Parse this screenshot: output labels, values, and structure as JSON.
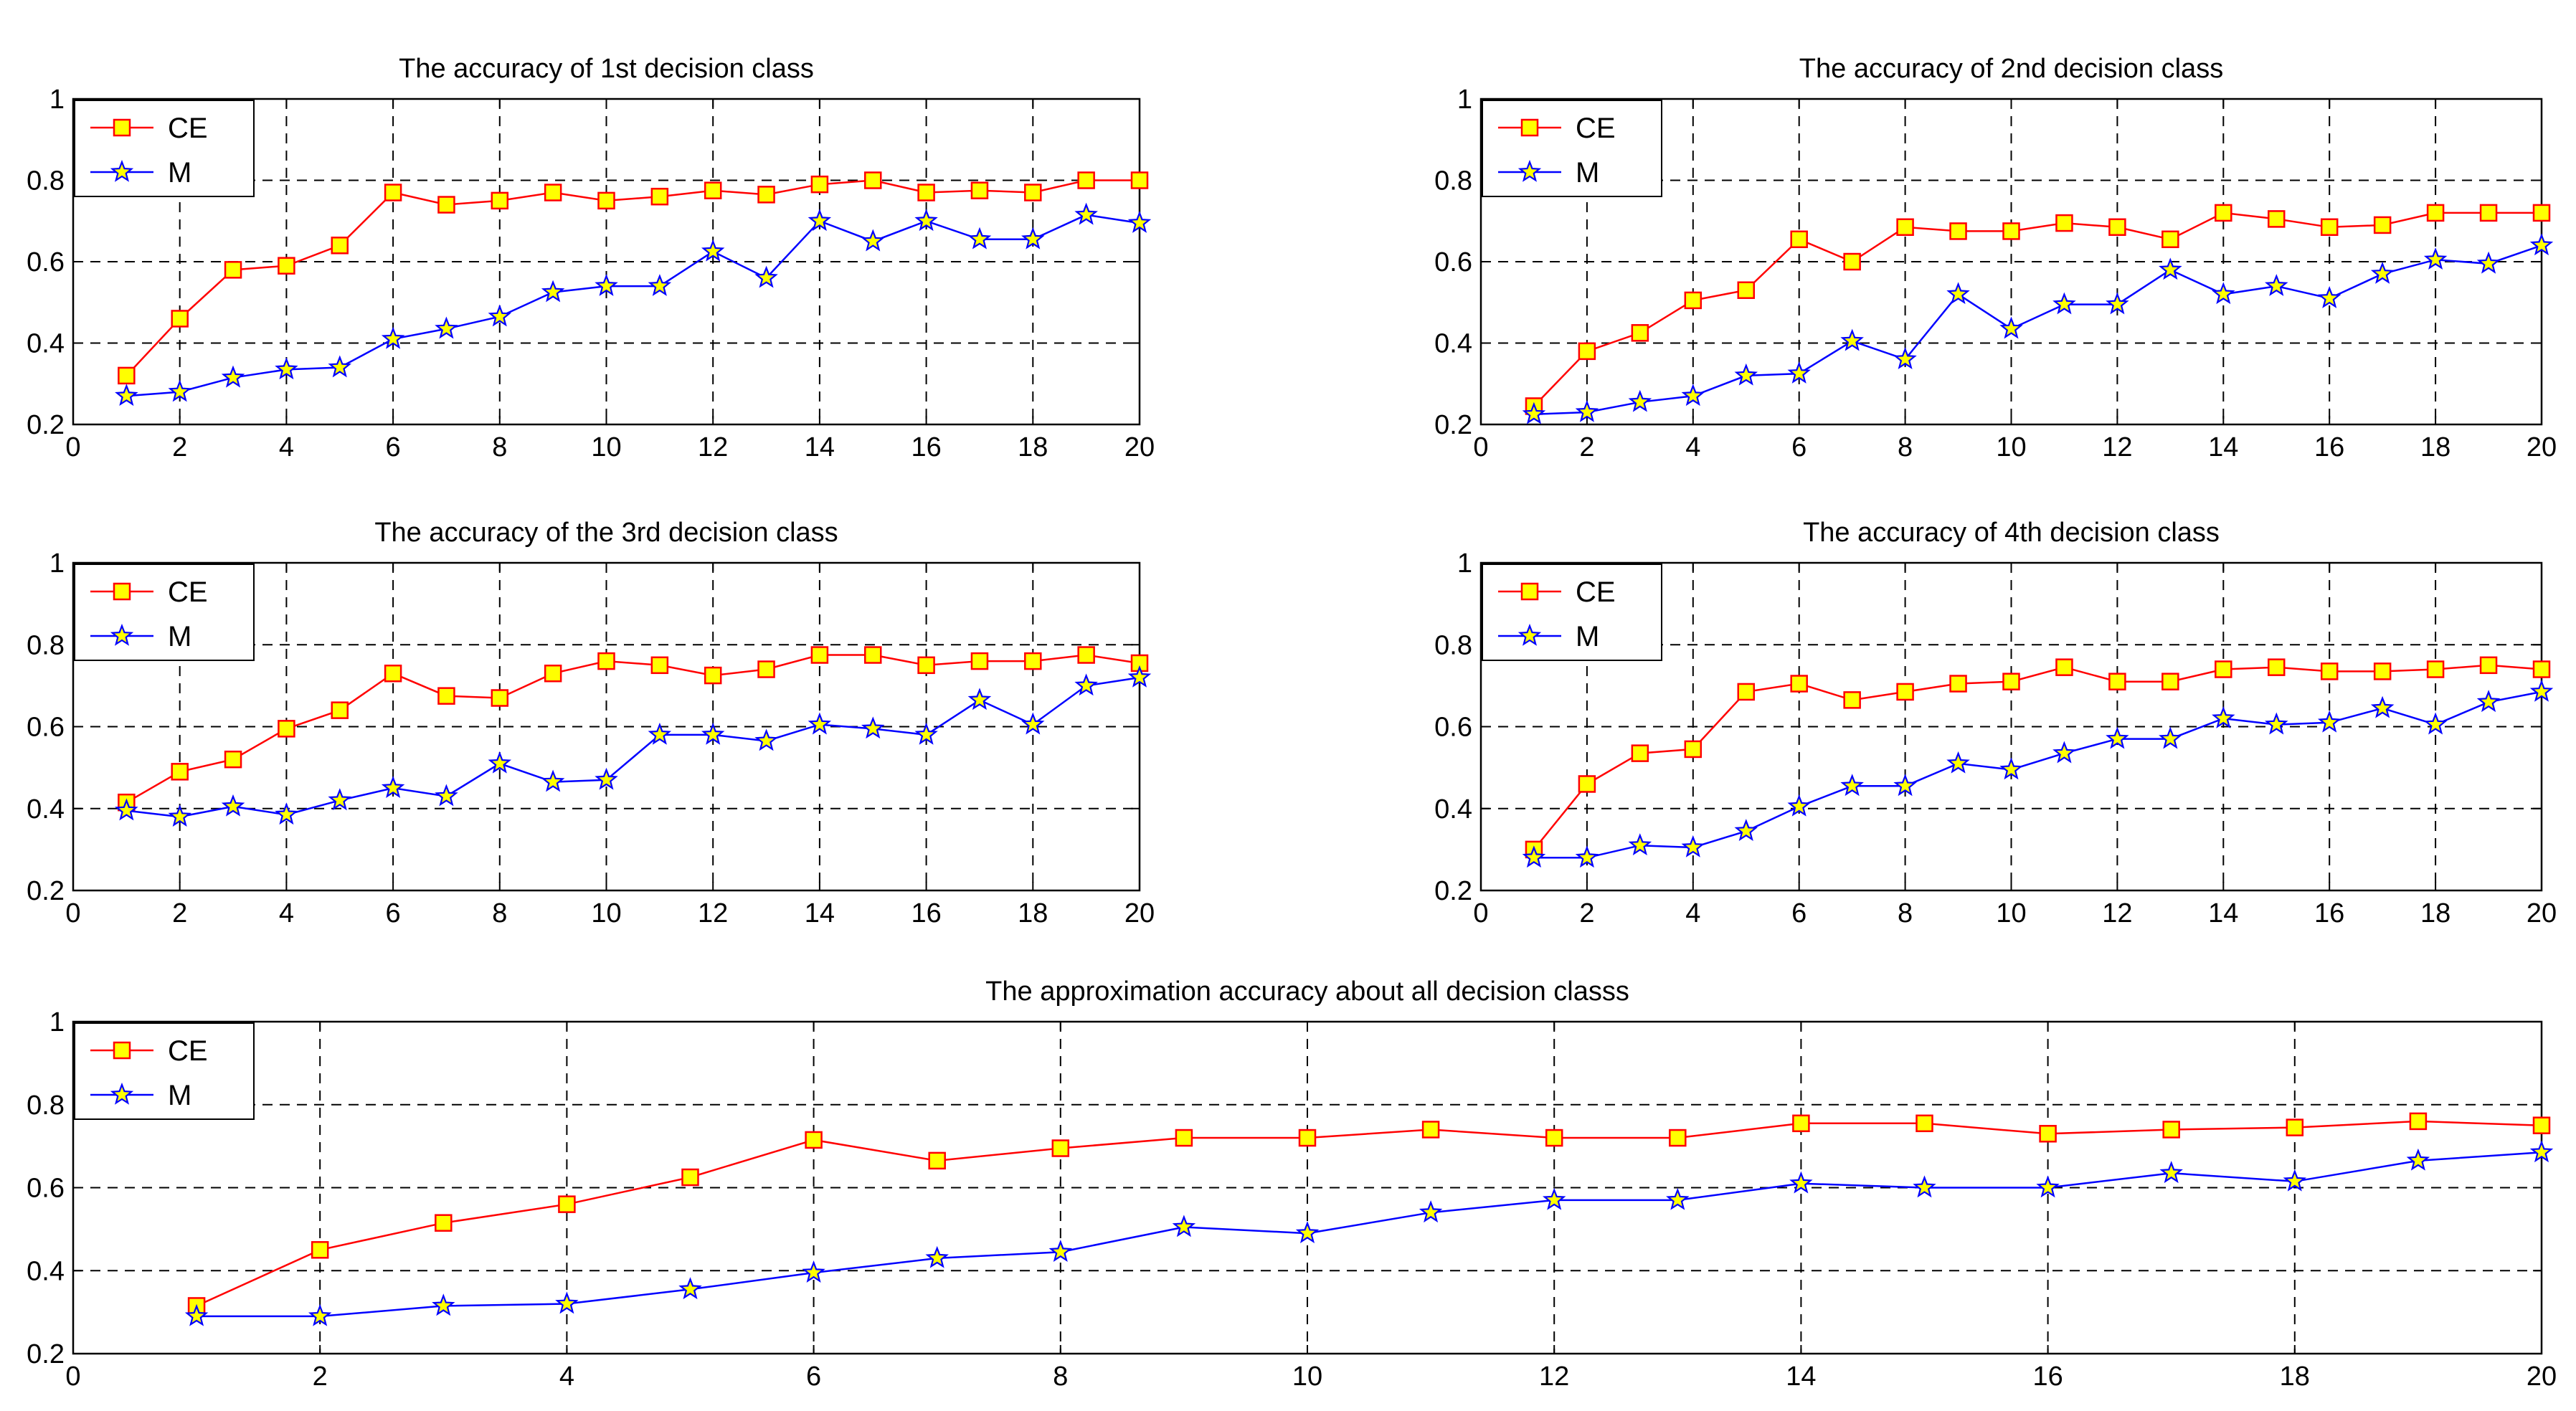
{
  "chart_data": [
    {
      "type": "line",
      "title": "The accuracy of 1st decision class",
      "xlim": [
        0,
        20
      ],
      "ylim": [
        0.2,
        1
      ],
      "xticks": [
        0,
        2,
        4,
        6,
        8,
        10,
        12,
        14,
        16,
        18,
        20
      ],
      "yticks": [
        0.2,
        0.4,
        0.6,
        0.8,
        1
      ],
      "grid": true,
      "legend_position": "top-left",
      "x": [
        1,
        2,
        3,
        4,
        5,
        6,
        7,
        8,
        9,
        10,
        11,
        12,
        13,
        14,
        15,
        16,
        17,
        18,
        19,
        20
      ],
      "series": [
        {
          "name": "CE",
          "color": "#ff0000",
          "marker": "square",
          "marker_fill": "#ffff00",
          "values": [
            0.32,
            0.46,
            0.58,
            0.59,
            0.64,
            0.77,
            0.74,
            0.75,
            0.77,
            0.75,
            0.76,
            0.775,
            0.765,
            0.79,
            0.8,
            0.77,
            0.775,
            0.77,
            0.8,
            0.8
          ]
        },
        {
          "name": "M",
          "color": "#0000ff",
          "marker": "star",
          "marker_fill": "#ffff00",
          "values": [
            0.27,
            0.28,
            0.315,
            0.335,
            0.34,
            0.41,
            0.435,
            0.465,
            0.525,
            0.54,
            0.54,
            0.625,
            0.56,
            0.7,
            0.65,
            0.7,
            0.655,
            0.655,
            0.715,
            0.695
          ]
        }
      ]
    },
    {
      "type": "line",
      "title": "The accuracy of 2nd decision class",
      "xlim": [
        0,
        20
      ],
      "ylim": [
        0.2,
        1
      ],
      "xticks": [
        0,
        2,
        4,
        6,
        8,
        10,
        12,
        14,
        16,
        18,
        20
      ],
      "yticks": [
        0.2,
        0.4,
        0.6,
        0.8,
        1
      ],
      "grid": true,
      "legend_position": "top-left",
      "x": [
        1,
        2,
        3,
        4,
        5,
        6,
        7,
        8,
        9,
        10,
        11,
        12,
        13,
        14,
        15,
        16,
        17,
        18,
        19,
        20
      ],
      "series": [
        {
          "name": "CE",
          "color": "#ff0000",
          "marker": "square",
          "marker_fill": "#ffff00",
          "values": [
            0.245,
            0.38,
            0.425,
            0.505,
            0.53,
            0.655,
            0.6,
            0.685,
            0.675,
            0.675,
            0.695,
            0.685,
            0.655,
            0.72,
            0.705,
            0.685,
            0.69,
            0.72,
            0.72,
            0.72
          ]
        },
        {
          "name": "M",
          "color": "#0000ff",
          "marker": "star",
          "marker_fill": "#ffff00",
          "values": [
            0.225,
            0.23,
            0.255,
            0.27,
            0.32,
            0.325,
            0.405,
            0.36,
            0.52,
            0.435,
            0.495,
            0.495,
            0.58,
            0.52,
            0.54,
            0.51,
            0.57,
            0.605,
            0.595,
            0.64
          ]
        }
      ]
    },
    {
      "type": "line",
      "title": "The accuracy of the 3rd decision class",
      "xlim": [
        0,
        20
      ],
      "ylim": [
        0.2,
        1
      ],
      "xticks": [
        0,
        2,
        4,
        6,
        8,
        10,
        12,
        14,
        16,
        18,
        20
      ],
      "yticks": [
        0.2,
        0.4,
        0.6,
        0.8,
        1
      ],
      "grid": true,
      "legend_position": "top-left",
      "x": [
        1,
        2,
        3,
        4,
        5,
        6,
        7,
        8,
        9,
        10,
        11,
        12,
        13,
        14,
        15,
        16,
        17,
        18,
        19,
        20
      ],
      "series": [
        {
          "name": "CE",
          "color": "#ff0000",
          "marker": "square",
          "marker_fill": "#ffff00",
          "values": [
            0.415,
            0.49,
            0.52,
            0.595,
            0.64,
            0.73,
            0.675,
            0.67,
            0.73,
            0.76,
            0.75,
            0.725,
            0.74,
            0.775,
            0.775,
            0.75,
            0.76,
            0.76,
            0.775,
            0.755
          ]
        },
        {
          "name": "M",
          "color": "#0000ff",
          "marker": "star",
          "marker_fill": "#ffff00",
          "values": [
            0.395,
            0.38,
            0.405,
            0.385,
            0.42,
            0.45,
            0.43,
            0.51,
            0.465,
            0.47,
            0.58,
            0.58,
            0.565,
            0.605,
            0.595,
            0.58,
            0.665,
            0.605,
            0.7,
            0.72
          ]
        }
      ]
    },
    {
      "type": "line",
      "title": "The accuracy of 4th decision class",
      "xlim": [
        0,
        20
      ],
      "ylim": [
        0.2,
        1
      ],
      "xticks": [
        0,
        2,
        4,
        6,
        8,
        10,
        12,
        14,
        16,
        18,
        20
      ],
      "yticks": [
        0.2,
        0.4,
        0.6,
        0.8,
        1
      ],
      "grid": true,
      "legend_position": "top-left",
      "x": [
        1,
        2,
        3,
        4,
        5,
        6,
        7,
        8,
        9,
        10,
        11,
        12,
        13,
        14,
        15,
        16,
        17,
        18,
        19,
        20
      ],
      "series": [
        {
          "name": "CE",
          "color": "#ff0000",
          "marker": "square",
          "marker_fill": "#ffff00",
          "values": [
            0.3,
            0.46,
            0.535,
            0.545,
            0.685,
            0.705,
            0.665,
            0.685,
            0.705,
            0.71,
            0.745,
            0.71,
            0.71,
            0.74,
            0.745,
            0.735,
            0.735,
            0.74,
            0.75,
            0.74
          ]
        },
        {
          "name": "M",
          "color": "#0000ff",
          "marker": "star",
          "marker_fill": "#ffff00",
          "values": [
            0.28,
            0.28,
            0.31,
            0.305,
            0.345,
            0.405,
            0.455,
            0.455,
            0.51,
            0.495,
            0.535,
            0.57,
            0.57,
            0.62,
            0.605,
            0.61,
            0.645,
            0.605,
            0.66,
            0.685
          ]
        }
      ]
    },
    {
      "type": "line",
      "title": "The approximation accuracy about all decision classs",
      "xlim": [
        0,
        20
      ],
      "ylim": [
        0.2,
        1
      ],
      "xticks": [
        0,
        2,
        4,
        6,
        8,
        10,
        12,
        14,
        16,
        18,
        20
      ],
      "yticks": [
        0.2,
        0.4,
        0.6,
        0.8,
        1
      ],
      "grid": true,
      "legend_position": "top-left",
      "x": [
        1,
        2,
        3,
        4,
        5,
        6,
        7,
        8,
        9,
        10,
        11,
        12,
        13,
        14,
        15,
        16,
        17,
        18,
        19,
        20
      ],
      "series": [
        {
          "name": "CE",
          "color": "#ff0000",
          "marker": "square",
          "marker_fill": "#ffff00",
          "values": [
            0.315,
            0.45,
            0.515,
            0.56,
            0.625,
            0.715,
            0.665,
            0.695,
            0.72,
            0.72,
            0.74,
            0.72,
            0.72,
            0.755,
            0.755,
            0.73,
            0.74,
            0.745,
            0.76,
            0.75
          ]
        },
        {
          "name": "M",
          "color": "#0000ff",
          "marker": "star",
          "marker_fill": "#ffff00",
          "values": [
            0.29,
            0.29,
            0.315,
            0.32,
            0.355,
            0.395,
            0.43,
            0.445,
            0.505,
            0.49,
            0.54,
            0.57,
            0.57,
            0.61,
            0.6,
            0.6,
            0.635,
            0.615,
            0.665,
            0.685
          ]
        }
      ]
    }
  ]
}
